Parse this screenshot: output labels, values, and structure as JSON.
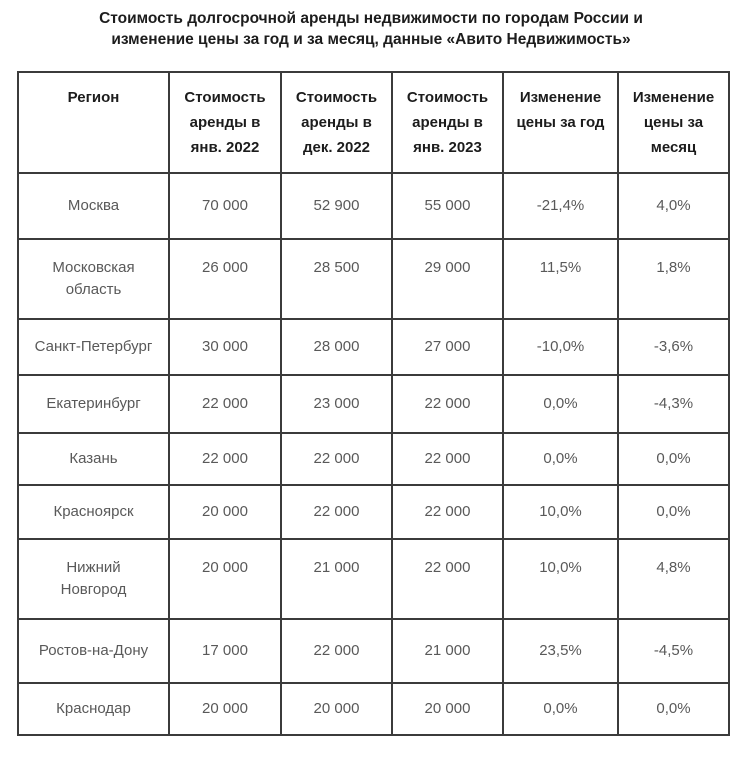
{
  "page": {
    "title_lines": [
      "Стоимость долгосрочной аренды недвижимости по городам России и",
      "изменение цены за год и за месяц, данные «Авито Недвижимость»"
    ]
  },
  "chart_data": {
    "type": "table",
    "title": "Стоимость долгосрочной аренды недвижимости по городам России и изменение цены за год и за месяц, данные «Авито Недвижимость»",
    "columns": [
      "Регион",
      "Стоимость аренды в янв. 2022",
      "Стоимость аренды в дек. 2022",
      "Стоимость аренды в янв. 2023",
      "Изменение цены за год",
      "Изменение цены за месяц"
    ],
    "rows": [
      [
        "Москва",
        "70 000",
        "52 900",
        "55 000",
        "-21,4%",
        "4,0%"
      ],
      [
        "Московская область",
        "26 000",
        "28 500",
        "29 000",
        "11,5%",
        "1,8%"
      ],
      [
        "Санкт-Петербург",
        "30 000",
        "28 000",
        "27 000",
        "-10,0%",
        "-3,6%"
      ],
      [
        "Екатеринбург",
        "22 000",
        "23 000",
        "22 000",
        "0,0%",
        "-4,3%"
      ],
      [
        "Казань",
        "22 000",
        "22 000",
        "22 000",
        "0,0%",
        "0,0%"
      ],
      [
        "Красноярск",
        "20 000",
        "22 000",
        "22 000",
        "10,0%",
        "0,0%"
      ],
      [
        "Нижний Новгород",
        "20 000",
        "21 000",
        "22 000",
        "10,0%",
        "4,8%"
      ],
      [
        "Ростов-на-Дону",
        "17 000",
        "22 000",
        "21 000",
        "23,5%",
        "-4,5%"
      ],
      [
        "Краснодар",
        "20 000",
        "20 000",
        "20 000",
        "0,0%",
        "0,0%"
      ]
    ],
    "colors": {
      "background": "#ffffff",
      "header_text": "#1c1c1c",
      "body_text": "#595959",
      "border": "#3b3b3b"
    },
    "layout_hints": {
      "grid": "all-borders",
      "header_rows": 1,
      "number_format": "space thousands separator, comma decimal separator"
    }
  }
}
